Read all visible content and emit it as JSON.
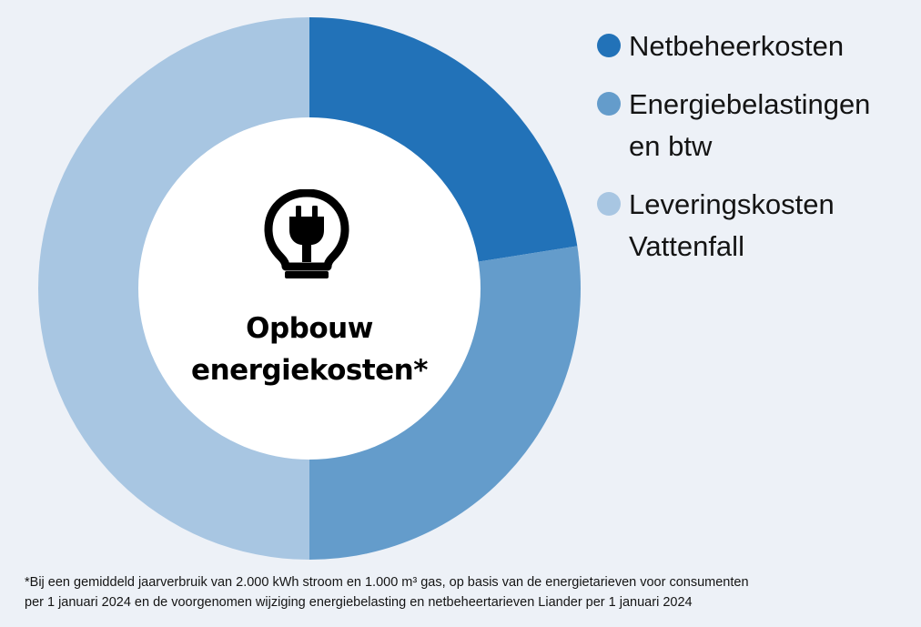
{
  "chart_data": {
    "type": "pie",
    "donut": true,
    "title": [
      "Opbouw",
      "energiekosten*"
    ],
    "series": [
      {
        "name": "Netbeheerkosten",
        "value": 22.5,
        "color": "#2272b8"
      },
      {
        "name": "Energiebelastingen en btw",
        "value": 27.5,
        "color": "#649ccb"
      },
      {
        "name": "Leveringskosten Vattenfall",
        "value": 50.0,
        "color": "#a8c6e2"
      }
    ],
    "legend": {
      "position": "top-right",
      "items": [
        {
          "lines": [
            "Netbeheerkosten"
          ],
          "color": "#2272b8"
        },
        {
          "lines": [
            "Energiebelastingen",
            "en btw"
          ],
          "color": "#649ccb"
        },
        {
          "lines": [
            "Leveringskosten",
            "Vattenfall"
          ],
          "color": "#a8c6e2"
        }
      ]
    },
    "footnote": [
      "*Bij een gemiddeld jaarverbruik van 2.000 kWh stroom en 1.000 m³ gas, op basis van de energietarieven voor consumenten",
      "per 1 januari 2024 en de voorgenomen wijziging energiebelasting en netbeheertarieven Liander per 1 januari 2024"
    ]
  },
  "icons": {
    "center": "lightbulb-plug-icon"
  },
  "colors": {
    "background": "#edf1f7",
    "center": "#ffffff"
  }
}
